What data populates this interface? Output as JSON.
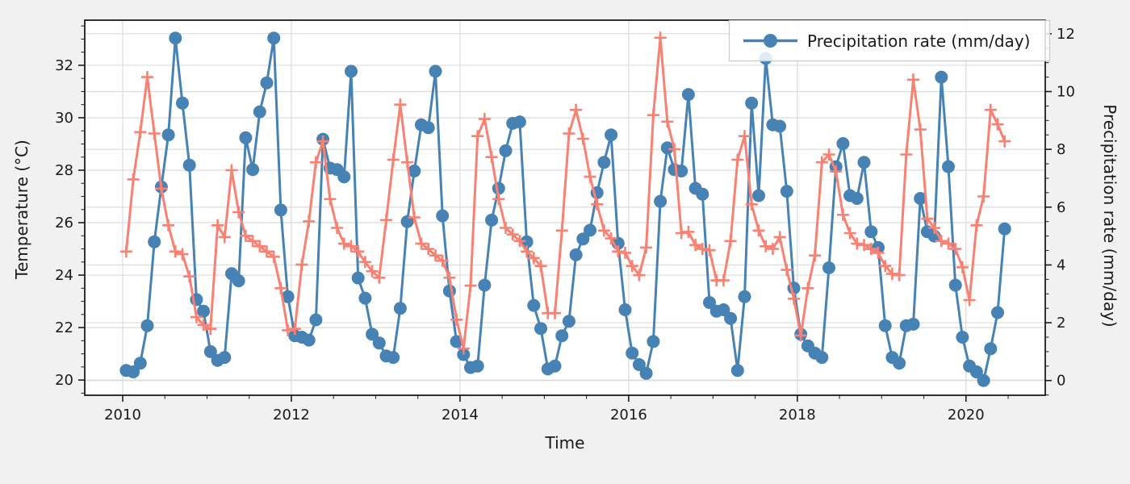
{
  "figure": {
    "background_color": "#f1f1f1",
    "plot_background_color": "#ffffff",
    "grid_color": "#dcdcdc",
    "spine_color": "#1c1c1c",
    "text_color": "#1a1a1a"
  },
  "chart_data": {
    "type": "line",
    "title": "",
    "xlabel": "Time",
    "ylabel_left": "Temperature (°C)",
    "ylabel_right": "Precipitation rate (mm/day)",
    "x_tick_labels": [
      "2010",
      "2012",
      "2014",
      "2016",
      "2018",
      "2020"
    ],
    "x_tick_values": [
      2010,
      2012,
      2014,
      2016,
      2018,
      2020
    ],
    "x_minor_step": 0.5,
    "y_left_tick_labels": [
      "20",
      "22",
      "24",
      "26",
      "28",
      "30",
      "32"
    ],
    "y_left_tick_values": [
      20,
      22,
      24,
      26,
      28,
      30,
      32
    ],
    "y_right_tick_labels": [
      "0",
      "2",
      "4",
      "6",
      "8",
      "10",
      "12"
    ],
    "y_right_tick_values": [
      0,
      2,
      4,
      6,
      8,
      10,
      12
    ],
    "y_minor_step": 0.5,
    "xlim": [
      2009.55,
      2020.94
    ],
    "ylim_left": [
      19.42,
      33.72
    ],
    "ylim_right": [
      -0.51,
      12.47
    ],
    "grid": true,
    "start_month": "2010-01",
    "frequency": "monthly",
    "legend": {
      "position": "top-right",
      "entries": [
        {
          "label": "Precipitation rate (mm/day)",
          "marker": "circle",
          "color": "#4682b4"
        }
      ]
    },
    "series": [
      {
        "name": "Temperature",
        "axis": "left",
        "color": "#fa8072",
        "marker": "plus",
        "values": [
          24.9,
          27.65,
          29.45,
          31.55,
          29.4,
          27.3,
          25.9,
          24.9,
          24.8,
          23.95,
          22.4,
          22.1,
          21.95,
          25.9,
          25.45,
          28.0,
          26.4,
          25.5,
          25.3,
          25.1,
          24.9,
          24.7,
          23.5,
          21.9,
          21.95,
          24.4,
          26.05,
          28.3,
          29.1,
          26.9,
          25.8,
          25.2,
          25.1,
          24.9,
          24.5,
          24.15,
          23.9,
          26.1,
          28.4,
          30.5,
          28.3,
          26.2,
          25.2,
          25.0,
          24.75,
          24.55,
          23.9,
          22.3,
          21.2,
          23.6,
          29.3,
          29.95,
          28.5,
          26.9,
          25.8,
          25.55,
          25.3,
          24.9,
          24.65,
          24.35,
          22.55,
          22.55,
          25.7,
          29.4,
          30.3,
          29.2,
          27.75,
          26.7,
          25.7,
          25.4,
          24.9,
          24.85,
          24.35,
          24.0,
          25.05,
          30.1,
          33.05,
          29.85,
          28.8,
          25.6,
          25.65,
          25.15,
          25.0,
          24.95,
          23.8,
          23.8,
          25.3,
          28.4,
          29.3,
          26.7,
          25.7,
          25.1,
          25.0,
          25.45,
          24.2,
          23.1,
          21.7,
          23.5,
          24.75,
          28.3,
          28.6,
          27.95,
          26.3,
          25.6,
          25.2,
          25.15,
          25.0,
          24.85,
          24.35,
          24.05,
          24.0,
          28.6,
          31.45,
          29.55,
          26.15,
          25.8,
          25.3,
          25.2,
          25.0,
          24.3,
          23.05,
          25.9,
          27.0,
          30.3,
          29.75,
          29.1
        ]
      },
      {
        "name": "Precipitation rate (mm/day)",
        "axis": "right",
        "color": "#4682b4",
        "marker": "circle",
        "values": [
          0.35,
          0.3,
          0.6,
          1.9,
          4.8,
          6.7,
          8.5,
          11.85,
          9.6,
          7.45,
          2.8,
          2.4,
          1.0,
          0.7,
          0.8,
          3.7,
          3.45,
          8.4,
          7.3,
          9.3,
          10.3,
          11.85,
          5.9,
          2.9,
          1.55,
          1.5,
          1.4,
          2.1,
          8.35,
          7.35,
          7.3,
          7.05,
          10.7,
          3.55,
          2.85,
          1.6,
          1.3,
          0.85,
          0.8,
          2.5,
          5.5,
          7.25,
          8.85,
          8.75,
          10.7,
          5.7,
          3.1,
          1.35,
          0.9,
          0.45,
          0.5,
          3.3,
          5.55,
          6.65,
          7.95,
          8.9,
          8.95,
          4.8,
          2.6,
          1.8,
          0.4,
          0.5,
          1.55,
          2.05,
          4.35,
          4.9,
          5.2,
          6.5,
          7.55,
          8.5,
          4.75,
          2.45,
          0.95,
          0.55,
          0.25,
          1.35,
          6.2,
          8.05,
          7.3,
          7.25,
          9.9,
          6.65,
          6.45,
          2.7,
          2.4,
          2.45,
          2.15,
          0.35,
          2.9,
          9.6,
          6.4,
          11.15,
          8.85,
          8.8,
          6.55,
          3.2,
          1.6,
          1.2,
          0.95,
          0.8,
          3.9,
          7.4,
          8.2,
          6.4,
          6.3,
          7.55,
          5.15,
          4.6,
          1.9,
          0.8,
          0.6,
          1.9,
          1.95,
          6.3,
          5.15,
          5.0,
          10.5,
          7.4,
          3.3,
          1.5,
          0.5,
          0.3,
          0.0,
          1.1,
          2.35,
          5.25
        ]
      }
    ]
  }
}
